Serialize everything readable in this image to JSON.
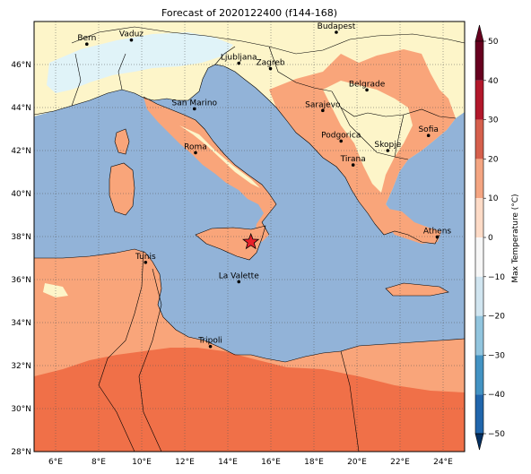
{
  "title": "Forecast of 2020122400 (f144-168)",
  "colorbar": {
    "label": "Max Temperature (°C)",
    "ticks": [
      "50",
      "40",
      "30",
      "20",
      "10",
      "0",
      "−10",
      "−20",
      "−30",
      "−40",
      "−50"
    ],
    "colors": [
      "#67001f",
      "#b2182b",
      "#d6604d",
      "#f4a582",
      "#fddbc7",
      "#f7f7f7",
      "#d1e5f0",
      "#92c5de",
      "#4393c3",
      "#2166ac",
      "#053061"
    ]
  },
  "axes": {
    "lat_labels": [
      "46°N",
      "44°N",
      "42°N",
      "40°N",
      "38°N",
      "36°N",
      "34°N",
      "32°N",
      "30°N",
      "28°N"
    ],
    "lon_labels": [
      "6°E",
      "8°E",
      "10°E",
      "12°E",
      "14°E",
      "16°E",
      "18°E",
      "20°E",
      "22°E",
      "24°E"
    ]
  },
  "colors": {
    "sea": "#92b3d8",
    "land_mild": "#f9a57a",
    "land_warm": "#f07048",
    "land_cool": "#fdf5c9",
    "land_cold": "#e0f3f8"
  },
  "cities": [
    {
      "name": "Bern",
      "lon": 7.45,
      "lat": 46.95
    },
    {
      "name": "Vaduz",
      "lon": 9.52,
      "lat": 47.14
    },
    {
      "name": "Budapest",
      "lon": 19.04,
      "lat": 47.5
    },
    {
      "name": "Ljubljana",
      "lon": 14.51,
      "lat": 46.06
    },
    {
      "name": "Zagreb",
      "lon": 15.98,
      "lat": 45.81
    },
    {
      "name": "Belgrade",
      "lon": 20.46,
      "lat": 44.82
    },
    {
      "name": "San Marino",
      "lon": 12.45,
      "lat": 43.94
    },
    {
      "name": "Sarajevo",
      "lon": 18.41,
      "lat": 43.86
    },
    {
      "name": "Sofia",
      "lon": 23.32,
      "lat": 42.7
    },
    {
      "name": "Podgorica",
      "lon": 19.26,
      "lat": 42.44
    },
    {
      "name": "Skopje",
      "lon": 21.43,
      "lat": 42.0
    },
    {
      "name": "Roma",
      "lon": 12.5,
      "lat": 41.9
    },
    {
      "name": "Tirana",
      "lon": 19.82,
      "lat": 41.33
    },
    {
      "name": "Athens",
      "lon": 23.73,
      "lat": 37.98
    },
    {
      "name": "Tunis",
      "lon": 10.18,
      "lat": 36.8
    },
    {
      "name": "La Valette",
      "lon": 14.51,
      "lat": 35.9
    },
    {
      "name": "Tripoli",
      "lon": 13.19,
      "lat": 32.89
    }
  ],
  "marker": {
    "name": "forecast-point",
    "lon": 15.07,
    "lat": 37.75
  }
}
